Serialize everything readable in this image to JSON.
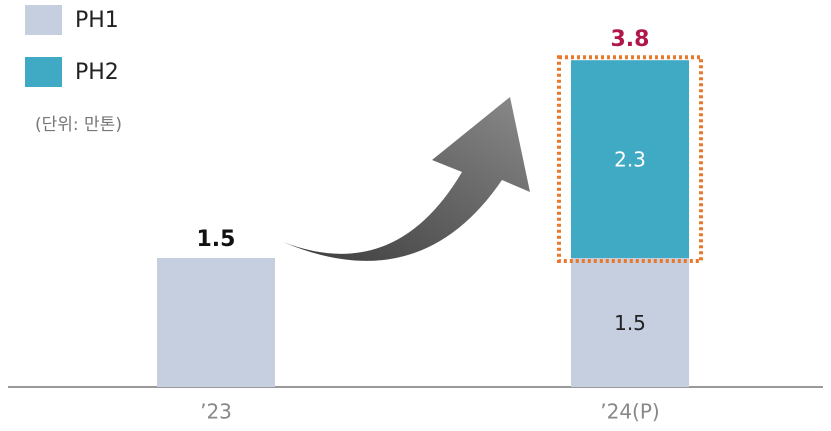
{
  "chart_data": {
    "type": "stacked-bar",
    "unit_note": "(단위: 만톤)",
    "categories": [
      "’23",
      "’24(P)"
    ],
    "series": [
      {
        "name": "PH1",
        "color": "#c5cfe0",
        "values": [
          1.5,
          1.5
        ]
      },
      {
        "name": "PH2",
        "color": "#40a9c4",
        "values": [
          null,
          2.3
        ]
      }
    ],
    "totals": [
      1.5,
      3.8
    ]
  }
}
